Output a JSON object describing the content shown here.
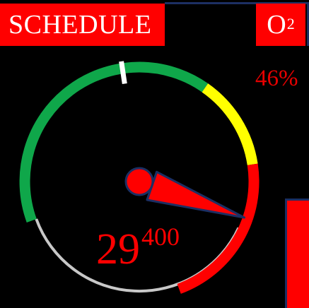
{
  "header": {
    "schedule_label": "SCHEDULE",
    "o2_label": "O",
    "o2_superscript": "2"
  },
  "o2": {
    "percent_text": "46%"
  },
  "gauge": {
    "needle_value_fraction": 0.755,
    "marker_value_fraction": 0.35,
    "zones": [
      {
        "name": "green",
        "color": "#0fa74a"
      },
      {
        "name": "yellow",
        "color": "#ffff00"
      },
      {
        "name": "red",
        "color": "#ff0000"
      }
    ],
    "background_track_color": "#c8c8c8",
    "needle_color": "#ff0000",
    "needle_outline_color": "#1c2f63"
  },
  "altitude": {
    "main": "29",
    "sub": "400"
  },
  "side_bar": {
    "color": "#ff0000"
  }
}
